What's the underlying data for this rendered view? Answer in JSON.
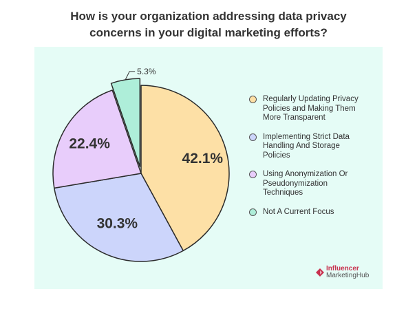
{
  "title_lines": [
    "How is your organization addressing data privacy",
    "concerns in your digital marketing efforts?"
  ],
  "colors": {
    "panel": "#e5fcf6",
    "slices": [
      "#fde0a6",
      "#ccd5fb",
      "#e8cdfb",
      "#aeeed9"
    ],
    "outline": "#2b2b2b"
  },
  "brand": {
    "line1": "Influencer",
    "line2": "MarketingHub"
  },
  "chart_data": {
    "type": "pie",
    "title": "How is your organization addressing data privacy concerns in your digital marketing efforts?",
    "start_angle_deg": 0,
    "exploded_slice": "Not A Current Focus",
    "legend_position": "right",
    "slices": [
      {
        "label": "Regularly Updating Privacy Policies and Making Them More Transparent",
        "value": 42.1,
        "value_label": "42.1%"
      },
      {
        "label": "Implementing Strict Data Handling And Storage Policies",
        "value": 30.3,
        "value_label": "30.3%"
      },
      {
        "label": "Using Anonymization Or Pseudonymization Techniques",
        "value": 22.4,
        "value_label": "22.4%"
      },
      {
        "label": "Not A Current Focus",
        "value": 5.3,
        "value_label": "5.3%"
      }
    ],
    "legend": [
      {
        "lines": [
          "Regularly Updating Privacy",
          "Policies and Making Them",
          "More Transparent"
        ]
      },
      {
        "lines": [
          "Implementing Strict Data",
          "Handling And Storage",
          "Policies"
        ]
      },
      {
        "lines": [
          "Using Anonymization Or",
          "Pseudonymization",
          "Techniques"
        ]
      },
      {
        "lines": [
          "Not A Current Focus"
        ]
      }
    ]
  }
}
